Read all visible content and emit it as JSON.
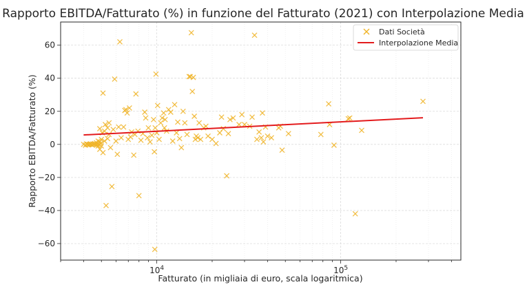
{
  "chart_data": {
    "type": "scatter",
    "title": "Rapporto EBITDA/Fatturato (%) in funzione del Fatturato (2021) con Interpolazione Media",
    "xlabel": "Fatturato (in migliaia di euro, scala logaritmica)",
    "ylabel": "Rapporto EBITDA/Fatturato (%)",
    "x_scale": "log",
    "xlim": [
      3000,
      450000
    ],
    "ylim": [
      -70,
      74
    ],
    "grid": true,
    "legend_position": "top-right",
    "x_ticks": [
      {
        "value": 10000,
        "base": "10",
        "exp": "4"
      },
      {
        "value": 100000,
        "base": "10",
        "exp": "5"
      }
    ],
    "y_ticks": [
      {
        "value": -60,
        "label": "−60"
      },
      {
        "value": -40,
        "label": "−40"
      },
      {
        "value": -20,
        "label": "−20"
      },
      {
        "value": 0,
        "label": "0"
      },
      {
        "value": 20,
        "label": "20"
      },
      {
        "value": 40,
        "label": "40"
      },
      {
        "value": 60,
        "label": "60"
      }
    ],
    "series": [
      {
        "name": "Dati Società",
        "kind": "scatter",
        "marker": "x",
        "color": "#f0b428",
        "points": [
          [
            4000,
            0
          ],
          [
            4100,
            -0.5
          ],
          [
            4150,
            0.3
          ],
          [
            4200,
            0
          ],
          [
            4250,
            -0.3
          ],
          [
            4300,
            0
          ],
          [
            4350,
            0.2
          ],
          [
            4400,
            0
          ],
          [
            4450,
            -0.2
          ],
          [
            4500,
            0.3
          ],
          [
            4550,
            0
          ],
          [
            4600,
            0.5
          ],
          [
            4650,
            0
          ],
          [
            4700,
            1
          ],
          [
            4700,
            -0.5
          ],
          [
            4750,
            0.3
          ],
          [
            4800,
            2
          ],
          [
            4800,
            -1
          ],
          [
            4850,
            0
          ],
          [
            4900,
            1.5
          ],
          [
            4900,
            -3
          ],
          [
            4950,
            0.5
          ],
          [
            5000,
            3
          ],
          [
            5000,
            -1
          ],
          [
            4900,
            9.5
          ],
          [
            5050,
            7
          ],
          [
            5100,
            31
          ],
          [
            5100,
            -5
          ],
          [
            5200,
            2
          ],
          [
            5200,
            8
          ],
          [
            5250,
            12
          ],
          [
            5300,
            -37
          ],
          [
            5400,
            10
          ],
          [
            5400,
            3.5
          ],
          [
            5500,
            13
          ],
          [
            5500,
            6
          ],
          [
            5600,
            -2
          ],
          [
            5700,
            -25.5
          ],
          [
            5800,
            9
          ],
          [
            5900,
            39.5
          ],
          [
            6000,
            2
          ],
          [
            6100,
            -6
          ],
          [
            6200,
            10.5
          ],
          [
            6300,
            62
          ],
          [
            6400,
            4
          ],
          [
            6600,
            10.5
          ],
          [
            6700,
            20.5
          ],
          [
            6800,
            21
          ],
          [
            6900,
            19
          ],
          [
            7000,
            3
          ],
          [
            7100,
            22
          ],
          [
            7200,
            4.5
          ],
          [
            7300,
            7.5
          ],
          [
            7500,
            -6.5
          ],
          [
            7600,
            6
          ],
          [
            7700,
            30.5
          ],
          [
            7900,
            8
          ],
          [
            8000,
            -31
          ],
          [
            8200,
            2.5
          ],
          [
            8400,
            6.5
          ],
          [
            8600,
            19.5
          ],
          [
            8700,
            16
          ],
          [
            8900,
            4
          ],
          [
            9000,
            10
          ],
          [
            9200,
            1.5
          ],
          [
            9400,
            5.5
          ],
          [
            9600,
            15
          ],
          [
            9700,
            -4.5
          ],
          [
            9750,
            -63.5
          ],
          [
            9800,
            10
          ],
          [
            9900,
            42.5
          ],
          [
            10000,
            7
          ],
          [
            10100,
            23.5
          ],
          [
            10300,
            3
          ],
          [
            10500,
            13
          ],
          [
            10700,
            16
          ],
          [
            10900,
            19
          ],
          [
            11000,
            10
          ],
          [
            11100,
            15
          ],
          [
            11300,
            8
          ],
          [
            11600,
            21
          ],
          [
            11900,
            19.5
          ],
          [
            12200,
            2
          ],
          [
            12500,
            24
          ],
          [
            12800,
            7
          ],
          [
            13000,
            13.5
          ],
          [
            13300,
            3.5
          ],
          [
            13600,
            -2
          ],
          [
            13900,
            20
          ],
          [
            14200,
            13
          ],
          [
            14600,
            6
          ],
          [
            15000,
            41
          ],
          [
            15200,
            41
          ],
          [
            15400,
            67.5
          ],
          [
            15600,
            32
          ],
          [
            15800,
            40.5
          ],
          [
            16000,
            17
          ],
          [
            16200,
            3
          ],
          [
            16400,
            5
          ],
          [
            16700,
            4
          ],
          [
            17000,
            13
          ],
          [
            17300,
            3
          ],
          [
            18000,
            10
          ],
          [
            18500,
            11
          ],
          [
            19000,
            5
          ],
          [
            20000,
            3
          ],
          [
            21000,
            0.5
          ],
          [
            22000,
            7
          ],
          [
            22500,
            16.5
          ],
          [
            23000,
            9.5
          ],
          [
            24000,
            -19
          ],
          [
            24500,
            6.5
          ],
          [
            25000,
            15
          ],
          [
            26000,
            16
          ],
          [
            28000,
            12
          ],
          [
            29000,
            18
          ],
          [
            30000,
            12
          ],
          [
            32000,
            11
          ],
          [
            33000,
            16.5
          ],
          [
            34000,
            66
          ],
          [
            35000,
            3
          ],
          [
            36000,
            7.5
          ],
          [
            37000,
            4
          ],
          [
            37500,
            19
          ],
          [
            38000,
            1.5
          ],
          [
            39000,
            10.5
          ],
          [
            40000,
            5
          ],
          [
            42000,
            4
          ],
          [
            46000,
            10
          ],
          [
            47000,
            11
          ],
          [
            48000,
            -3.5
          ],
          [
            52000,
            6.5
          ],
          [
            78000,
            6
          ],
          [
            86000,
            24.5
          ],
          [
            87000,
            12
          ],
          [
            92000,
            -0.5
          ],
          [
            110000,
            15.5
          ],
          [
            112000,
            16
          ],
          [
            120000,
            -42
          ],
          [
            130000,
            8.5
          ],
          [
            280000,
            26
          ]
        ]
      },
      {
        "name": "Interpolazione Media",
        "kind": "line",
        "color": "#e31a1c",
        "points": [
          [
            4000,
            5.7
          ],
          [
            280000,
            16.1
          ]
        ]
      }
    ]
  }
}
